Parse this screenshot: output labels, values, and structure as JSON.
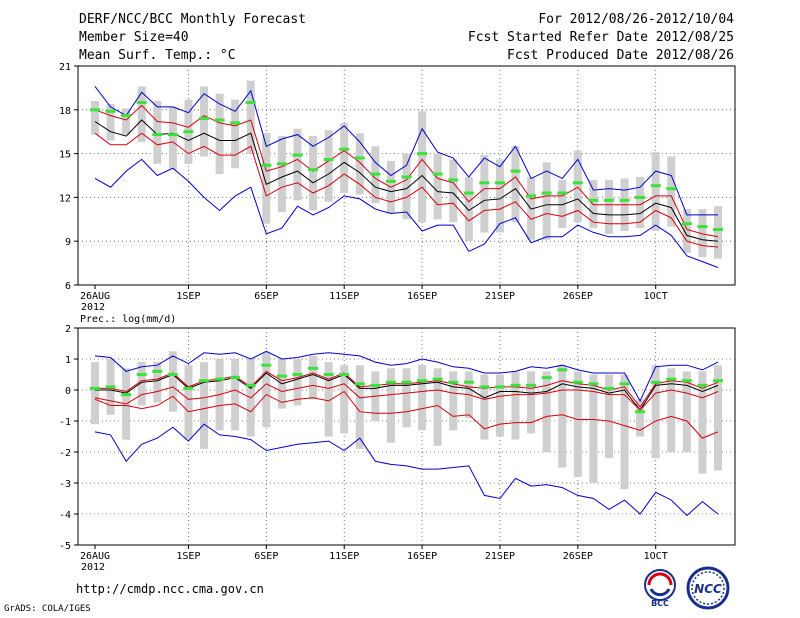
{
  "header": {
    "title": "DERF/NCC/BCC Monthly Forecast",
    "member_size": "Member Size=40",
    "variable": "Mean Surf. Temp.: °C",
    "period": "For 2012/08/26-2012/10/04",
    "started": "Fcst Started Refer Date 2012/08/25",
    "produced": "Fcst Produced Date 2012/08/26"
  },
  "footer": {
    "url": "http://cmdp.ncc.cma.gov.cn",
    "credit": "GrADS: COLA/IGES",
    "logos": [
      "BCC",
      "NCC"
    ]
  },
  "colors": {
    "box": "#cfcfcf",
    "mean": "#3ce23c",
    "ensemble_mean": "#000000",
    "std": "#d7000f",
    "extreme": "#0000cc"
  },
  "chart_data": [
    {
      "type": "line",
      "title": "Mean Surf. Temp.: °C",
      "ylim": [
        6,
        21
      ],
      "yticks": [
        "21",
        "18",
        "15",
        "12",
        "9",
        "6"
      ],
      "xticks": [
        {
          "day": 1,
          "label": "26AUG",
          "sublabel": "2012"
        },
        {
          "day": 7,
          "label": "1SEP"
        },
        {
          "day": 12,
          "label": "6SEP"
        },
        {
          "day": 17,
          "label": "11SEP"
        },
        {
          "day": 22,
          "label": "16SEP"
        },
        {
          "day": 27,
          "label": "21SEP"
        },
        {
          "day": 32,
          "label": "26SEP"
        },
        {
          "day": 37,
          "label": "1OCT"
        }
      ],
      "series": [
        {
          "name": "Green",
          "kind": "marker",
          "values": [
            18.0,
            17.9,
            17.6,
            18.5,
            16.3,
            16.3,
            16.5,
            17.4,
            17.3,
            17.1,
            18.5,
            14.2,
            14.3,
            14.9,
            13.9,
            14.6,
            15.3,
            14.7,
            13.6,
            13.1,
            13.4,
            15.0,
            13.6,
            13.2,
            12.3,
            13.0,
            13.0,
            13.8,
            12.1,
            12.3,
            12.3,
            13.0,
            11.8,
            11.8,
            11.8,
            12.0,
            12.8,
            12.6,
            10.2,
            10.0,
            9.8
          ]
        },
        {
          "name": "Box top",
          "kind": "box_top",
          "values": [
            18.6,
            18.4,
            18.1,
            19.6,
            18.6,
            18.2,
            18.7,
            19.6,
            19.1,
            18.7,
            20.0,
            16.4,
            16.2,
            16.7,
            16.2,
            16.6,
            17.1,
            16.4,
            15.5,
            14.5,
            15.0,
            17.9,
            15.0,
            14.6,
            13.4,
            14.9,
            14.6,
            15.5,
            13.4,
            14.4,
            13.2,
            15.2,
            13.2,
            13.2,
            13.3,
            13.4,
            15.1,
            14.8,
            11.2,
            11.2,
            11.4
          ]
        },
        {
          "name": "Box bottom",
          "kind": "box_bottom",
          "values": [
            16.3,
            15.9,
            16.3,
            15.8,
            14.3,
            13.9,
            14.3,
            14.8,
            13.6,
            14.0,
            15.0,
            10.2,
            11.0,
            11.8,
            11.1,
            11.7,
            12.3,
            12.2,
            11.6,
            10.9,
            10.5,
            10.3,
            10.5,
            10.3,
            9.0,
            9.6,
            9.6,
            10.3,
            9.1,
            9.1,
            9.9,
            10.3,
            9.9,
            9.5,
            9.7,
            9.9,
            9.7,
            10.0,
            8.2,
            7.9,
            7.8
          ]
        },
        {
          "name": "Max",
          "kind": "line",
          "values": [
            19.6,
            18.2,
            17.6,
            19.2,
            18.2,
            18.2,
            17.8,
            19.1,
            18.4,
            17.9,
            19.3,
            15.5,
            16.0,
            16.3,
            15.5,
            16.1,
            16.9,
            15.8,
            14.4,
            13.5,
            14.2,
            16.7,
            15.1,
            14.7,
            13.4,
            14.7,
            14.1,
            15.5,
            13.3,
            13.8,
            13.3,
            14.6,
            12.5,
            12.6,
            12.5,
            12.7,
            13.8,
            13.5,
            10.8,
            10.8,
            10.8
          ]
        },
        {
          "name": "Std upper",
          "kind": "line",
          "values": [
            18.0,
            17.6,
            17.3,
            18.3,
            17.2,
            17.1,
            16.8,
            17.6,
            17.1,
            16.9,
            17.3,
            13.8,
            14.1,
            14.6,
            13.8,
            14.5,
            15.2,
            14.4,
            13.3,
            12.7,
            13.2,
            14.6,
            13.3,
            13.0,
            11.7,
            12.6,
            12.6,
            13.4,
            11.9,
            12.1,
            12.1,
            12.7,
            11.5,
            11.5,
            11.5,
            11.5,
            12.1,
            12.1,
            9.8,
            9.5,
            9.3
          ]
        },
        {
          "name": "Mean",
          "kind": "line",
          "values": [
            17.2,
            16.5,
            16.2,
            17.3,
            16.3,
            16.4,
            15.9,
            16.4,
            15.9,
            15.9,
            16.4,
            12.9,
            13.4,
            13.8,
            13.0,
            13.6,
            14.4,
            13.7,
            12.7,
            12.4,
            12.6,
            13.5,
            12.4,
            12.3,
            11.1,
            11.8,
            11.9,
            12.6,
            11.2,
            11.5,
            11.5,
            11.9,
            10.9,
            10.8,
            10.8,
            10.9,
            11.6,
            11.3,
            9.4,
            9.1,
            9.0
          ]
        },
        {
          "name": "Std lower",
          "kind": "line",
          "values": [
            16.4,
            15.6,
            15.6,
            16.4,
            15.6,
            15.8,
            15.0,
            15.5,
            14.9,
            14.9,
            15.5,
            12.1,
            12.7,
            13.0,
            12.3,
            12.8,
            13.6,
            12.9,
            12.0,
            11.7,
            12.0,
            12.7,
            11.5,
            11.6,
            10.4,
            11.1,
            11.2,
            11.7,
            10.5,
            10.9,
            10.7,
            11.1,
            10.3,
            10.2,
            10.2,
            10.3,
            11.1,
            10.6,
            9.0,
            8.7,
            8.6
          ]
        },
        {
          "name": "Min",
          "kind": "line",
          "values": [
            13.3,
            12.7,
            13.8,
            14.6,
            13.5,
            14.0,
            13.1,
            12.0,
            11.1,
            12.1,
            12.7,
            9.5,
            9.9,
            11.4,
            10.8,
            11.3,
            12.1,
            11.9,
            11.2,
            10.9,
            11.0,
            9.7,
            10.1,
            10.1,
            8.3,
            8.8,
            10.2,
            10.6,
            8.9,
            9.3,
            9.3,
            10.1,
            9.6,
            9.3,
            9.3,
            9.4,
            10.1,
            9.4,
            8.0,
            7.6,
            7.2
          ]
        }
      ]
    },
    {
      "type": "line",
      "title": "Prec.: log(mm/d)",
      "ylim": [
        -5,
        2
      ],
      "yticks": [
        "2",
        "1",
        "0",
        "-1",
        "-2",
        "-3",
        "-4",
        "-5"
      ],
      "xticks": [
        {
          "day": 1,
          "label": "26AUG",
          "sublabel": "2012"
        },
        {
          "day": 7,
          "label": "1SEP"
        },
        {
          "day": 12,
          "label": "6SEP"
        },
        {
          "day": 17,
          "label": "11SEP"
        },
        {
          "day": 22,
          "label": "16SEP"
        },
        {
          "day": 27,
          "label": "21SEP"
        },
        {
          "day": 32,
          "label": "26SEP"
        },
        {
          "day": 37,
          "label": "1OCT"
        }
      ],
      "series": [
        {
          "name": "Green",
          "kind": "marker",
          "values": [
            0.05,
            0.1,
            -0.15,
            0.5,
            0.6,
            0.5,
            0.05,
            0.3,
            0.35,
            0.4,
            0.15,
            0.8,
            0.45,
            0.5,
            0.7,
            0.5,
            0.5,
            0.2,
            0.15,
            0.25,
            0.25,
            0.3,
            0.35,
            0.25,
            0.25,
            0.1,
            0.1,
            0.15,
            0.15,
            0.4,
            0.65,
            0.25,
            0.2,
            0.05,
            0.2,
            -0.7,
            0.25,
            0.35,
            0.3,
            0.15,
            0.3
          ]
        },
        {
          "name": "Box top",
          "kind": "box_top",
          "values": [
            0.9,
            1.0,
            0.7,
            0.9,
            0.9,
            1.25,
            0.8,
            0.9,
            1.0,
            1.0,
            1.0,
            1.2,
            1.0,
            1.0,
            1.1,
            0.9,
            0.8,
            0.8,
            0.6,
            0.7,
            0.7,
            0.8,
            0.7,
            0.6,
            0.6,
            0.5,
            0.5,
            0.6,
            0.6,
            0.6,
            0.8,
            0.6,
            0.5,
            0.5,
            0.5,
            -0.3,
            0.8,
            0.7,
            0.6,
            0.6,
            0.8
          ]
        },
        {
          "name": "Box bottom",
          "kind": "box_bottom",
          "values": [
            -1.1,
            -0.8,
            -1.6,
            -0.5,
            -0.4,
            -0.7,
            -1.6,
            -1.9,
            -1.3,
            -1.3,
            -1.5,
            -1.2,
            -0.6,
            -0.5,
            -0.3,
            -1.5,
            -1.4,
            -1.9,
            -1.0,
            -1.7,
            -1.2,
            -1.3,
            -1.8,
            -1.3,
            -0.9,
            -1.6,
            -1.5,
            -1.6,
            -1.4,
            -2.0,
            -2.5,
            -2.8,
            -3.0,
            -2.2,
            -3.2,
            -1.5,
            -2.2,
            -2.0,
            -2.0,
            -2.7,
            -2.6
          ]
        },
        {
          "name": "Max",
          "kind": "line",
          "values": [
            1.1,
            1.05,
            0.6,
            0.75,
            0.8,
            1.1,
            0.85,
            1.2,
            1.15,
            1.2,
            1.0,
            1.25,
            1.0,
            1.05,
            1.15,
            1.2,
            1.15,
            1.1,
            0.9,
            0.8,
            0.85,
            1.0,
            0.9,
            0.75,
            0.7,
            0.55,
            0.55,
            0.6,
            0.75,
            0.7,
            0.8,
            0.65,
            0.55,
            0.55,
            0.55,
            -0.35,
            0.75,
            0.8,
            0.8,
            0.65,
            0.9
          ]
        },
        {
          "name": "Std upper",
          "kind": "line",
          "values": [
            0.05,
            0.05,
            -0.05,
            0.3,
            0.35,
            0.55,
            0.1,
            0.3,
            0.35,
            0.45,
            0.1,
            0.6,
            0.3,
            0.4,
            0.55,
            0.35,
            0.55,
            0.1,
            0.15,
            0.2,
            0.2,
            0.25,
            0.3,
            0.2,
            0.1,
            0.05,
            0.1,
            0.1,
            0.05,
            0.15,
            0.3,
            0.2,
            0.15,
            0.0,
            0.1,
            -0.55,
            0.2,
            0.3,
            0.25,
            0.05,
            0.25
          ]
        },
        {
          "name": "Mean",
          "kind": "line",
          "values": [
            0.0,
            0.0,
            -0.1,
            0.25,
            0.3,
            0.5,
            0.05,
            0.25,
            0.3,
            0.4,
            0.05,
            0.55,
            0.2,
            0.35,
            0.5,
            0.3,
            0.5,
            0.05,
            0.05,
            0.15,
            0.15,
            0.2,
            0.25,
            0.1,
            0.05,
            -0.25,
            -0.05,
            -0.05,
            -0.1,
            -0.05,
            0.2,
            0.1,
            0.05,
            -0.1,
            0.0,
            -0.65,
            0.15,
            0.2,
            0.15,
            -0.05,
            0.15
          ]
        },
        {
          "name": "Std lower",
          "kind": "line",
          "values": [
            -0.25,
            -0.35,
            -0.45,
            -0.15,
            -0.05,
            0.1,
            -0.3,
            -0.25,
            -0.15,
            0.0,
            -0.25,
            0.2,
            -0.05,
            0.05,
            0.15,
            0.05,
            0.2,
            -0.25,
            -0.2,
            -0.15,
            -0.1,
            -0.05,
            0.0,
            -0.1,
            -0.15,
            -0.3,
            -0.2,
            -0.15,
            -0.15,
            -0.1,
            0.0,
            0.0,
            -0.05,
            -0.15,
            -0.15,
            -0.65,
            -0.1,
            0.0,
            -0.1,
            -0.25,
            -0.05
          ]
        },
        {
          "name": "Min1",
          "kind": "line",
          "values": [
            -0.3,
            -0.5,
            -0.5,
            -0.6,
            -0.5,
            -0.2,
            -0.7,
            -0.6,
            -0.5,
            -0.45,
            -0.7,
            -0.15,
            -0.4,
            -0.3,
            -0.25,
            -0.35,
            -0.05,
            -0.7,
            -0.75,
            -0.75,
            -0.7,
            -0.6,
            -0.5,
            -0.85,
            -0.8,
            -1.25,
            -1.1,
            -1.05,
            -1.05,
            -0.85,
            -0.8,
            -0.95,
            -0.95,
            -1.0,
            -1.15,
            -1.3,
            -1.0,
            -0.85,
            -1.0,
            -1.55,
            -1.35
          ]
        },
        {
          "name": "Min2",
          "kind": "line",
          "values": [
            -1.35,
            -1.45,
            -2.3,
            -1.75,
            -1.55,
            -1.2,
            -1.65,
            -1.1,
            -1.45,
            -1.5,
            -1.6,
            -1.95,
            -1.85,
            -1.75,
            -1.7,
            -1.65,
            -1.95,
            -1.55,
            -2.3,
            -2.4,
            -2.45,
            -2.55,
            -2.55,
            -2.5,
            -2.45,
            -3.4,
            -3.5,
            -2.85,
            -3.1,
            -3.05,
            -3.15,
            -3.4,
            -3.5,
            -3.85,
            -3.55,
            -4.0,
            -3.3,
            -3.55,
            -4.05,
            -3.6,
            -4.0
          ]
        }
      ]
    }
  ]
}
